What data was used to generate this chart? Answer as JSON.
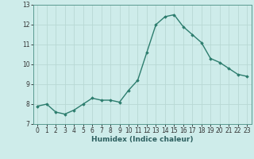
{
  "x": [
    0,
    1,
    2,
    3,
    4,
    5,
    6,
    7,
    8,
    9,
    10,
    11,
    12,
    13,
    14,
    15,
    16,
    17,
    18,
    19,
    20,
    21,
    22,
    23
  ],
  "y": [
    7.9,
    8.0,
    7.6,
    7.5,
    7.7,
    8.0,
    8.3,
    8.2,
    8.2,
    8.1,
    8.7,
    9.2,
    10.6,
    12.0,
    12.4,
    12.5,
    11.9,
    11.5,
    11.1,
    10.3,
    10.1,
    9.8,
    9.5,
    9.4
  ],
  "xlabel": "Humidex (Indice chaleur)",
  "xlim": [
    -0.5,
    23.5
  ],
  "ylim": [
    7.0,
    13.0
  ],
  "yticks": [
    7,
    8,
    9,
    10,
    11,
    12,
    13
  ],
  "xticks": [
    0,
    1,
    2,
    3,
    4,
    5,
    6,
    7,
    8,
    9,
    10,
    11,
    12,
    13,
    14,
    15,
    16,
    17,
    18,
    19,
    20,
    21,
    22,
    23
  ],
  "line_color": "#2d7d6e",
  "marker": "D",
  "marker_size": 1.8,
  "bg_color": "#ceecea",
  "grid_color": "#b8d8d4",
  "line_width": 1.0,
  "tick_fontsize": 5.5,
  "xlabel_fontsize": 6.5,
  "spine_color": "#5a9a90"
}
